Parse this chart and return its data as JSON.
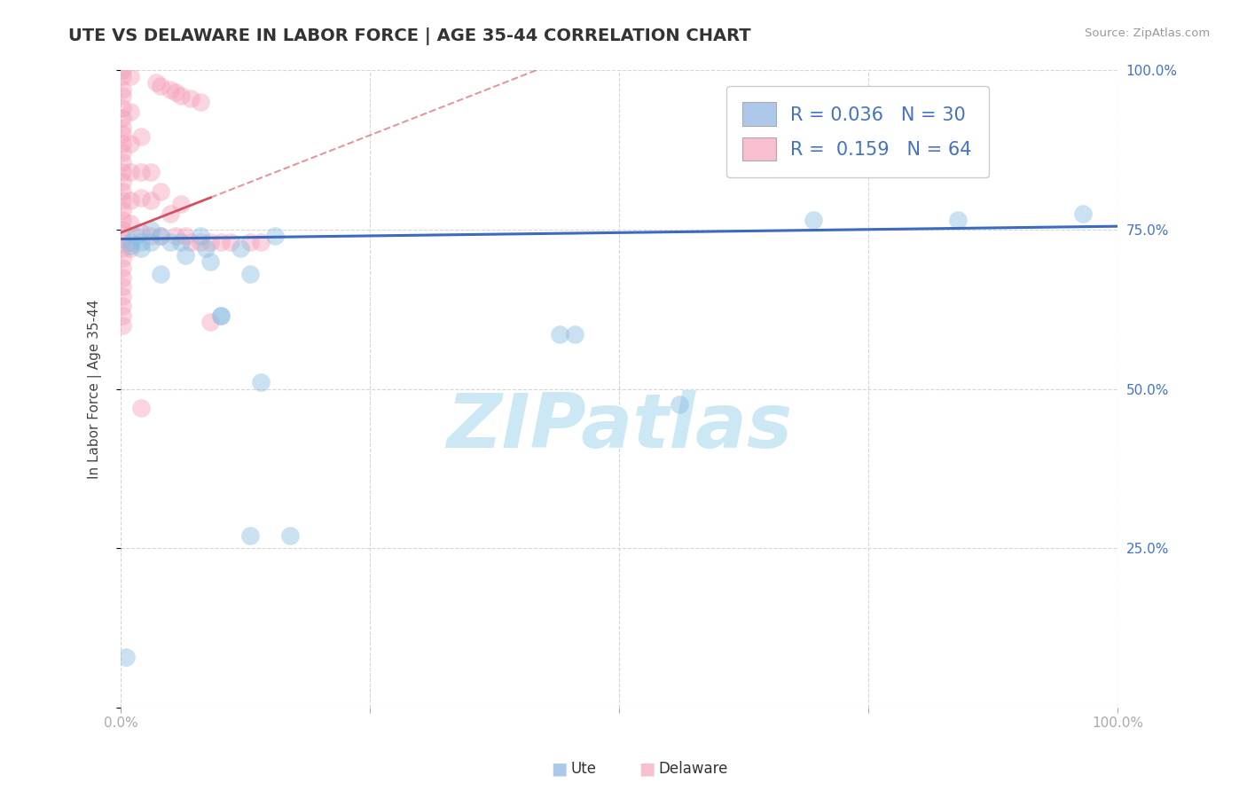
{
  "title": "UTE VS DELAWARE IN LABOR FORCE | AGE 35-44 CORRELATION CHART",
  "source": "Source: ZipAtlas.com",
  "ylabel": "In Labor Force | Age 35-44",
  "xlim": [
    0.0,
    1.0
  ],
  "ylim": [
    0.0,
    1.0
  ],
  "xticks": [
    0.0,
    0.25,
    0.5,
    0.75,
    1.0
  ],
  "yticks": [
    0.0,
    0.25,
    0.5,
    0.75,
    1.0
  ],
  "xticklabels": [
    "0.0%",
    "",
    "",
    "",
    "100.0%"
  ],
  "yticklabels_right": [
    "",
    "25.0%",
    "50.0%",
    "75.0%",
    "100.0%"
  ],
  "ute_color": "#89bde0",
  "delaware_color": "#f4a0b8",
  "trend_ute_color": "#3a6bbf",
  "trend_delaware_color": "#d45060",
  "watermark_text": "ZIPatlas",
  "watermark_color": "#cce8f4",
  "background_color": "#ffffff",
  "grid_color": "#cccccc",
  "legend_ute_label": "R = 0.036   N = 30",
  "legend_del_label": "R =  0.159   N = 64",
  "legend_text_color": "#4472c4",
  "bottom_legend_ute": "Ute",
  "bottom_legend_del": "Delaware",
  "ute_points": [
    [
      0.005,
      0.08
    ],
    [
      0.01,
      0.73
    ],
    [
      0.01,
      0.725
    ],
    [
      0.015,
      0.74
    ],
    [
      0.02,
      0.73
    ],
    [
      0.02,
      0.72
    ],
    [
      0.03,
      0.73
    ],
    [
      0.03,
      0.75
    ],
    [
      0.04,
      0.68
    ],
    [
      0.04,
      0.74
    ],
    [
      0.05,
      0.73
    ],
    [
      0.06,
      0.73
    ],
    [
      0.065,
      0.71
    ],
    [
      0.08,
      0.74
    ],
    [
      0.085,
      0.72
    ],
    [
      0.09,
      0.7
    ],
    [
      0.1,
      0.615
    ],
    [
      0.1,
      0.615
    ],
    [
      0.12,
      0.72
    ],
    [
      0.13,
      0.68
    ],
    [
      0.13,
      0.27
    ],
    [
      0.14,
      0.51
    ],
    [
      0.155,
      0.74
    ],
    [
      0.17,
      0.27
    ],
    [
      0.44,
      0.585
    ],
    [
      0.455,
      0.585
    ],
    [
      0.56,
      0.475
    ],
    [
      0.695,
      0.765
    ],
    [
      0.84,
      0.765
    ],
    [
      0.965,
      0.775
    ]
  ],
  "delaware_points": [
    [
      0.002,
      1.0
    ],
    [
      0.002,
      0.99
    ],
    [
      0.002,
      0.97
    ],
    [
      0.002,
      0.96
    ],
    [
      0.002,
      0.94
    ],
    [
      0.002,
      0.925
    ],
    [
      0.002,
      0.91
    ],
    [
      0.002,
      0.9
    ],
    [
      0.002,
      0.885
    ],
    [
      0.002,
      0.87
    ],
    [
      0.002,
      0.855
    ],
    [
      0.002,
      0.84
    ],
    [
      0.002,
      0.825
    ],
    [
      0.002,
      0.81
    ],
    [
      0.002,
      0.795
    ],
    [
      0.002,
      0.78
    ],
    [
      0.002,
      0.765
    ],
    [
      0.002,
      0.75
    ],
    [
      0.002,
      0.735
    ],
    [
      0.002,
      0.72
    ],
    [
      0.002,
      0.705
    ],
    [
      0.002,
      0.69
    ],
    [
      0.002,
      0.675
    ],
    [
      0.002,
      0.66
    ],
    [
      0.002,
      0.645
    ],
    [
      0.002,
      0.63
    ],
    [
      0.002,
      0.615
    ],
    [
      0.002,
      0.6
    ],
    [
      0.01,
      0.99
    ],
    [
      0.01,
      0.935
    ],
    [
      0.01,
      0.885
    ],
    [
      0.01,
      0.84
    ],
    [
      0.01,
      0.795
    ],
    [
      0.01,
      0.76
    ],
    [
      0.01,
      0.72
    ],
    [
      0.02,
      0.895
    ],
    [
      0.02,
      0.84
    ],
    [
      0.02,
      0.8
    ],
    [
      0.02,
      0.745
    ],
    [
      0.02,
      0.47
    ],
    [
      0.03,
      0.84
    ],
    [
      0.03,
      0.795
    ],
    [
      0.03,
      0.74
    ],
    [
      0.04,
      0.81
    ],
    [
      0.04,
      0.74
    ],
    [
      0.05,
      0.775
    ],
    [
      0.055,
      0.74
    ],
    [
      0.06,
      0.79
    ],
    [
      0.065,
      0.74
    ],
    [
      0.07,
      0.73
    ],
    [
      0.08,
      0.73
    ],
    [
      0.09,
      0.73
    ],
    [
      0.09,
      0.605
    ],
    [
      0.1,
      0.73
    ],
    [
      0.11,
      0.73
    ],
    [
      0.13,
      0.73
    ],
    [
      0.14,
      0.73
    ],
    [
      0.035,
      0.98
    ],
    [
      0.04,
      0.975
    ],
    [
      0.05,
      0.97
    ],
    [
      0.055,
      0.965
    ],
    [
      0.06,
      0.96
    ],
    [
      0.07,
      0.955
    ],
    [
      0.08,
      0.95
    ]
  ],
  "trend_del_x_start": 0.0,
  "trend_del_x_end": 0.18,
  "trend_ute_x_start": 0.0,
  "trend_ute_x_end": 1.0
}
